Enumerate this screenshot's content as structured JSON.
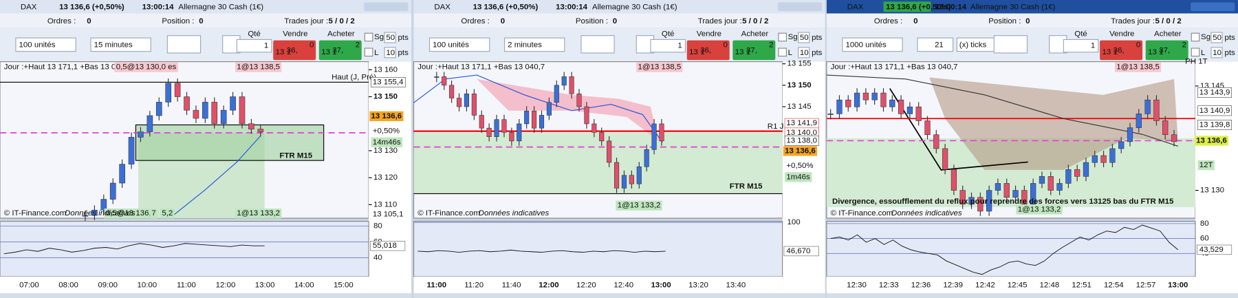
{
  "panels": [
    {
      "header": {
        "instrument": "DAX",
        "quote": "13 136,6 (+0,50%)",
        "time": "13:00:14",
        "name": "Allemagne 30 Cash (1€)"
      },
      "orders": {
        "orders_label": "Ordres :",
        "orders_value": "0",
        "position_label": "Position :",
        "position_value": "0",
        "trades_label": "Trades jour :",
        "trades_value": "5 / 0 / 2"
      },
      "toolbar": {
        "units": "100 unités",
        "period": "15 minutes",
        "qty_label": "Qté",
        "qty": "1",
        "sell_label": "Vendre",
        "sell_small": "13 1",
        "sell_big": "36,",
        "sell_sup": "0",
        "buy_label": "Acheter",
        "buy_small": "13 1",
        "buy_big": "37,",
        "buy_sup": "2",
        "sg": "Sg",
        "l": "L",
        "pts_sg": "50",
        "pts_l": "10",
        "pts": "pts"
      },
      "chart": {
        "info": "Jour :+Haut 13 171,1 +Bas 13 040,7",
        "ylim": [
          13105,
          13163
        ],
        "yticks": [
          {
            "value": 13160,
            "label": "13 160"
          },
          {
            "value": 13150,
            "label": "13 150"
          },
          {
            "value": 13130,
            "label": "13 130"
          },
          {
            "value": 13120,
            "label": "13 120"
          },
          {
            "value": 13110,
            "label": "13 110"
          }
        ],
        "closes": [
          13106,
          13108,
          13112,
          13118,
          13125,
          13135,
          13137,
          13143,
          13148,
          13155,
          13150,
          13145,
          13142,
          13148,
          13140,
          13145,
          13150,
          13140,
          13138,
          13137
        ],
        "tags": [
          "0,5@13 130,0 es",
          "1@13 138,5",
          "Haut (J, Pré)",
          "13 155,4",
          "13 136,6",
          "+0,50%",
          "14m46s",
          "13 105,1",
          "0,5@13 136,0",
          "7",
          "5,2",
          "1@13 133,2",
          "FTR M15"
        ],
        "source": "© IT-Finance.com",
        "disclaimer": "Données indicatives"
      },
      "indicator": {
        "ylim": [
          16,
          86
        ],
        "yticks": [
          80,
          60,
          40
        ],
        "values": [
          45,
          47,
          50,
          48,
          52,
          50,
          47,
          49,
          52,
          53,
          51,
          55,
          58,
          56,
          53,
          55,
          58,
          57,
          56,
          55,
          54,
          56,
          55,
          55
        ],
        "value_label": "55,018"
      },
      "xticks": [
        "07:00",
        "08:00",
        "09:00",
        "10:00",
        "11:00",
        "12:00",
        "13:00",
        "14:00",
        "15:00"
      ]
    },
    {
      "header": {
        "instrument": "DAX",
        "quote": "13 136,6 (+0,50%)",
        "time": "13:00:14",
        "name": "Allemagne 30 Cash (1€)"
      },
      "orders": {
        "orders_label": "Ordres :",
        "orders_value": "0",
        "position_label": "Position :",
        "position_value": "0",
        "trades_label": "Trades jour :",
        "trades_value": "5 / 0 / 2"
      },
      "toolbar": {
        "units": "100 unités",
        "period": "2 minutes",
        "qty_label": "Qté",
        "qty": "1",
        "sell_label": "Vendre",
        "sell_small": "13 1",
        "sell_big": "36,",
        "sell_sup": "0",
        "buy_label": "Acheter",
        "buy_small": "13 1",
        "buy_big": "37,",
        "buy_sup": "2",
        "sg": "Sg",
        "l": "L",
        "pts_sg": "50",
        "pts_l": "10",
        "pts": "pts"
      },
      "chart": {
        "info": "Jour :+Haut 13 171,1 +Bas 13 040,7",
        "ylim": [
          13119,
          13155.5
        ],
        "yticks": [
          {
            "value": 13155,
            "label": "13 155"
          },
          {
            "value": 13150,
            "label": "13 150"
          },
          {
            "value": 13145,
            "label": "13 145"
          }
        ],
        "closes": [
          13152,
          13150,
          13147,
          13145,
          13148,
          13143,
          13140,
          13138,
          13142,
          13139,
          13137,
          13141,
          13144,
          13140,
          13143,
          13146,
          13150,
          13152,
          13148,
          13145,
          13141,
          13139,
          13137,
          13132,
          13126,
          13129,
          13127,
          13131,
          13135,
          13141,
          13137
        ],
        "tags": [
          "1@13 138,5",
          "R1 J",
          "13 141,9",
          "13 140,0",
          "13 138,0",
          "13 136,6",
          "+0,50%",
          "1m46s",
          "1@13 133,2",
          "FTR M15"
        ],
        "source": "© IT-Finance.com",
        "disclaimer": "Données indicatives"
      },
      "indicator": {
        "ylim": [
          0,
          102
        ],
        "yticks": [
          100
        ],
        "values": [
          47,
          46,
          48,
          47,
          45,
          47,
          48,
          46,
          47,
          49,
          47,
          46,
          45,
          47,
          48,
          46,
          45,
          47,
          46,
          48,
          47,
          45,
          47,
          46,
          47
        ],
        "value_label": "46,670"
      },
      "xticks": [
        "11:00",
        "11:20",
        "11:40",
        "12:00",
        "12:20",
        "12:40",
        "13:00",
        "13:20",
        "13:40"
      ]
    },
    {
      "header": {
        "instrument": "DAX",
        "quote": "13 136,6 (+0,50%)",
        "time": "13:00:14",
        "name": "Allemagne 30 Cash (1€)"
      },
      "orders": {
        "orders_label": "Ordres :",
        "orders_value": "0",
        "position_label": "Position :",
        "position_value": "0",
        "trades_label": "Trades jour :",
        "trades_value": "5 / 0 / 2"
      },
      "toolbar": {
        "units": "1000 unités",
        "period": "21",
        "period_unit": "(x) ticks",
        "qty_label": "Qté",
        "qty": "1",
        "sell_label": "Vendre",
        "sell_small": "13 1",
        "sell_big": "36,",
        "sell_sup": "0",
        "buy_label": "Acheter",
        "buy_small": "13 1",
        "buy_big": "37,",
        "buy_sup": "2",
        "sg": "Sg",
        "l": "L",
        "pts_sg": "50",
        "pts_l": "10",
        "pts": "pts"
      },
      "chart": {
        "info": "Jour :+Haut 13 171,1 +Bas 13 040,7",
        "ylim": [
          13126,
          13148.5
        ],
        "yticks": [
          {
            "value": 13145,
            "label": "13 145"
          },
          {
            "value": 13130,
            "label": "13 130"
          }
        ],
        "closes": [
          13141,
          13143,
          13142,
          13144,
          13143,
          13144,
          13142,
          13143,
          13141,
          13142,
          13140,
          13138,
          13136,
          13133,
          13130,
          13128,
          13129,
          13127,
          13130,
          13131,
          13129,
          13130,
          13128,
          13131,
          13132,
          13130,
          13131,
          13133,
          13132,
          13134,
          13135,
          13134,
          13136,
          13137,
          13139,
          13141,
          13143,
          13140,
          13138,
          13137
        ],
        "tags": [
          "1@13 138,5",
          "PH 1T",
          "13 143,9",
          "13 140,9",
          "13 139,8",
          "13 136,6",
          "12T",
          "Divergence, essoufflement du reflux pour reprendre des forces vers 13125 bas du FTR M15",
          "1@13 133,2"
        ],
        "source": "© IT-Finance.com",
        "disclaimer": "Données indicatives"
      },
      "indicator": {
        "ylim": [
          9,
          83
        ],
        "yticks": [
          80,
          60,
          40
        ],
        "values": [
          60,
          62,
          58,
          65,
          55,
          60,
          52,
          58,
          50,
          45,
          42,
          40,
          38,
          30,
          25,
          20,
          15,
          12,
          18,
          22,
          28,
          30,
          26,
          24,
          30,
          40,
          48,
          55,
          62,
          58,
          65,
          70,
          68,
          75,
          72,
          78,
          74,
          70,
          55,
          45
        ],
        "value_label": "43,529"
      },
      "xticks": [
        "12:30",
        "12:33",
        "12:36",
        "12:39",
        "12:42",
        "12:45",
        "12:48",
        "12:51",
        "12:54",
        "12:57",
        "13:00"
      ]
    }
  ]
}
